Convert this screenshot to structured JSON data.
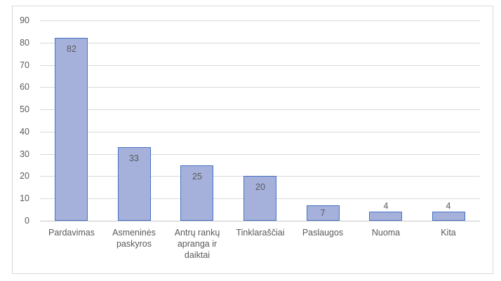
{
  "chart_data": {
    "type": "bar",
    "title": "",
    "xlabel": "",
    "ylabel": "",
    "categories": [
      "Pardavimas",
      "Asmeninės paskyros",
      "Antrų rankų apranga ir daiktai",
      "Tinklaraščiai",
      "Paslaugos",
      "Nuoma",
      "Kita"
    ],
    "values": [
      82,
      33,
      25,
      20,
      7,
      4,
      4
    ],
    "data_labels": [
      "82",
      "33",
      "25",
      "20",
      "7",
      "4",
      "4"
    ],
    "ylim": [
      0,
      90
    ],
    "ytick_step": 10,
    "ytick_labels": [
      "0",
      "10",
      "20",
      "30",
      "40",
      "50",
      "60",
      "70",
      "80",
      "90"
    ],
    "grid": true,
    "legend": false
  },
  "colors": {
    "bar_fill": "#a5b1db",
    "bar_border": "#4472c4",
    "gridline": "#d9d9d9",
    "axis_line": "#c8c8c8",
    "text": "#595959",
    "frame_border": "#d9d9d9",
    "background": "#ffffff"
  }
}
